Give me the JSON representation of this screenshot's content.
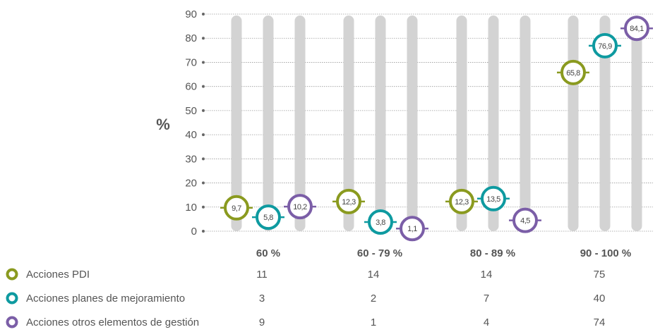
{
  "chart_data": {
    "type": "scatter",
    "title": "",
    "xlabel": "",
    "ylabel": "%",
    "ylim": [
      0,
      90
    ],
    "yticks": [
      "0",
      "10",
      "20",
      "30",
      "40",
      "50",
      "60",
      "70",
      "80",
      "90"
    ],
    "grid": true,
    "categories": [
      "60 %",
      "60 - 79 %",
      "80 - 89 %",
      "90 - 100 %"
    ],
    "series": [
      {
        "name": "Acciones PDI",
        "color": "#8a9a1f",
        "values": [
          9.7,
          12.3,
          12.3,
          65.8
        ],
        "value_labels": [
          "9,7",
          "12,3",
          "12,3",
          "65,8"
        ],
        "table_values": [
          "11",
          "14",
          "14",
          "75"
        ]
      },
      {
        "name": "Acciones planes de mejoramiento",
        "color": "#0e9aa0",
        "values": [
          5.8,
          3.8,
          13.5,
          76.9
        ],
        "value_labels": [
          "5,8",
          "3,8",
          "13,5",
          "76,9"
        ],
        "table_values": [
          "3",
          "2",
          "7",
          "40"
        ]
      },
      {
        "name": "Acciones otros elementos de gestión",
        "color": "#7b5ea7",
        "values": [
          10.2,
          1.1,
          4.5,
          84.1
        ],
        "value_labels": [
          "10,2",
          "1,1",
          "4,5",
          "84,1"
        ],
        "table_values": [
          "9",
          "1",
          "4",
          "74"
        ]
      }
    ],
    "legend_position": "bottom-left"
  }
}
